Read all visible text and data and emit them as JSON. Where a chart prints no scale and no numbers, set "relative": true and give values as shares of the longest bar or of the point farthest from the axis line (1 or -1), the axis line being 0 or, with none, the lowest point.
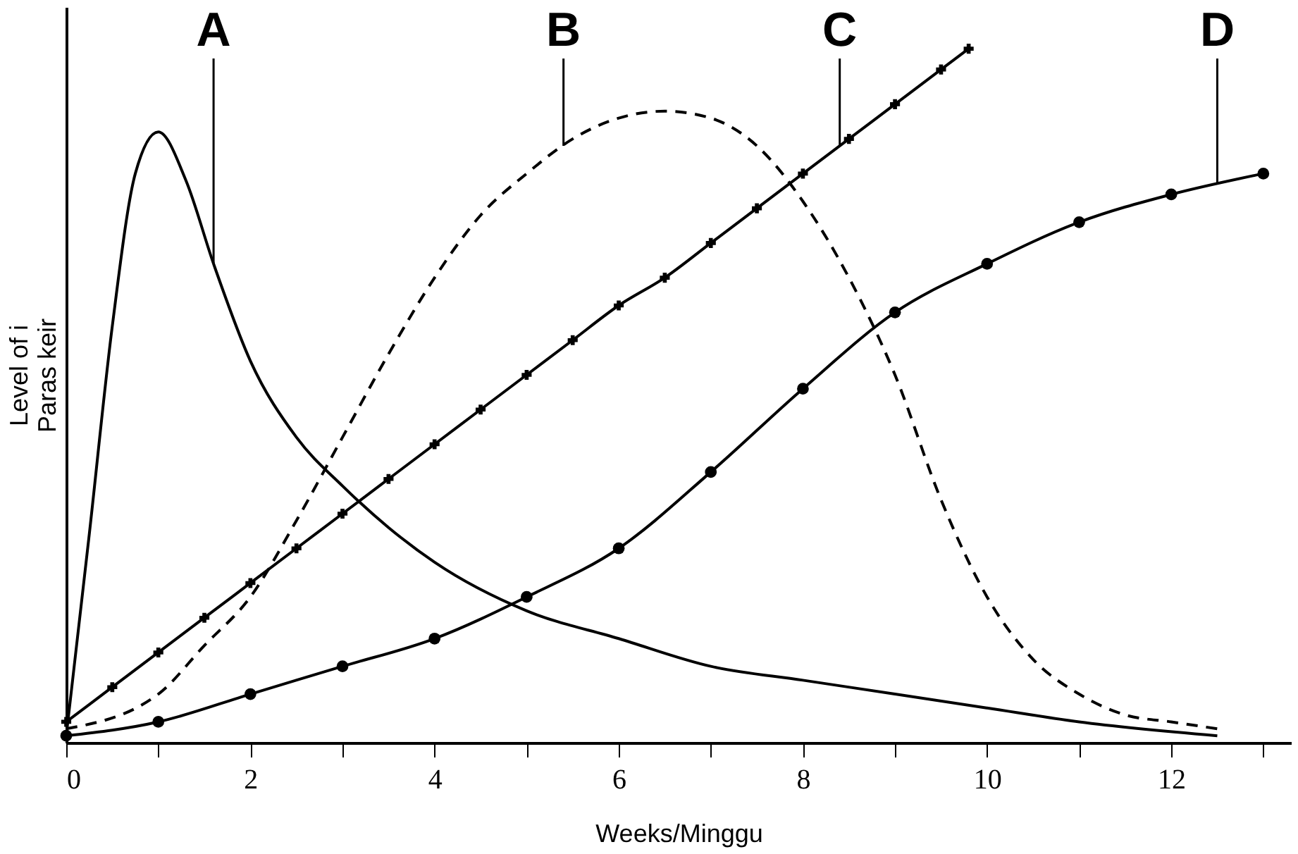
{
  "chart_data": {
    "type": "line",
    "relative": true,
    "xlabel": "Weeks/Minggu",
    "ylabel": "Level of i\nParas keir",
    "xlim": [
      0,
      13.3
    ],
    "xticks": [
      0,
      {
        "value": 1,
        "label": null
      },
      2,
      {
        "value": 3,
        "label": null
      },
      4,
      {
        "value": 5,
        "label": null
      },
      6,
      {
        "value": 7,
        "label": null
      },
      8,
      {
        "value": 9,
        "label": null
      },
      10,
      {
        "value": 11,
        "label": null
      },
      12,
      {
        "value": 13,
        "label": null
      }
    ],
    "grid": false,
    "series": [
      {
        "name": "A",
        "color": "#000000",
        "line_style": "solid",
        "marker": "none",
        "x": [
          0,
          0.25,
          0.5,
          0.75,
          1,
          1.3,
          1.6,
          2,
          2.5,
          3,
          3.5,
          4,
          5,
          6,
          7,
          8,
          9,
          10,
          11,
          12.5
        ],
        "values": [
          0.01,
          0.3,
          0.6,
          0.82,
          0.88,
          0.81,
          0.69,
          0.55,
          0.44,
          0.37,
          0.31,
          0.26,
          0.19,
          0.15,
          0.11,
          0.09,
          0.07,
          0.05,
          0.03,
          0.01
        ]
      },
      {
        "name": "B",
        "color": "#000000",
        "line_style": "dashed",
        "marker": "none",
        "x": [
          0,
          1,
          1.5,
          2,
          2.5,
          3,
          3.5,
          4,
          4.5,
          5,
          5.5,
          6,
          6.5,
          7,
          7.5,
          8,
          8.5,
          9,
          9.5,
          10,
          10.5,
          11,
          11.5,
          12,
          12.5
        ],
        "values": [
          0.02,
          0.07,
          0.14,
          0.21,
          0.32,
          0.44,
          0.56,
          0.67,
          0.76,
          0.82,
          0.87,
          0.9,
          0.91,
          0.9,
          0.86,
          0.78,
          0.67,
          0.53,
          0.35,
          0.21,
          0.12,
          0.07,
          0.04,
          0.03,
          0.02
        ]
      },
      {
        "name": "C",
        "color": "#000000",
        "line_style": "solid",
        "marker": "cross",
        "x": [
          0,
          0.5,
          1,
          1.5,
          2,
          2.5,
          3,
          3.5,
          4,
          4.5,
          5,
          5.5,
          6,
          6.5,
          7,
          7.5,
          8,
          8.5,
          9,
          9.5,
          9.8
        ],
        "values": [
          0.03,
          0.08,
          0.13,
          0.18,
          0.23,
          0.28,
          0.33,
          0.38,
          0.43,
          0.48,
          0.53,
          0.58,
          0.63,
          0.67,
          0.72,
          0.77,
          0.82,
          0.87,
          0.92,
          0.97,
          1.0
        ]
      },
      {
        "name": "D",
        "color": "#000000",
        "line_style": "solid",
        "marker": "circle",
        "x": [
          0,
          1,
          2,
          3,
          4,
          5,
          6,
          7,
          8,
          9,
          10,
          11,
          12,
          13
        ],
        "values": [
          0.01,
          0.03,
          0.07,
          0.11,
          0.15,
          0.21,
          0.28,
          0.39,
          0.51,
          0.62,
          0.69,
          0.75,
          0.79,
          0.82
        ]
      }
    ]
  }
}
